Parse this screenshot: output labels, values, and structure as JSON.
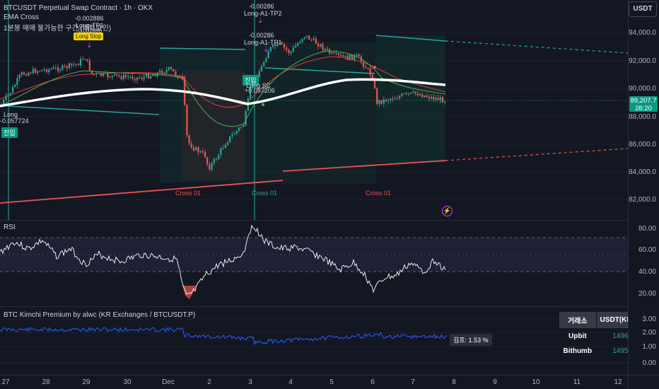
{
  "header": {
    "symbol_title": "BTCUSDT Perpetual Swap Contract · 1h · OKX",
    "indicator1": "EMA Cross",
    "indicator2": "1분봉 매매 불가능한 구간 (비트코인)"
  },
  "currency_button": "USDT",
  "price_axis": [
    "94,000.0",
    "92,000.0",
    "90,000.0",
    "88,000.0",
    "86,000.0",
    "84,000.0",
    "82,000.0"
  ],
  "last_price": {
    "value": "89,207.7",
    "countdown": "28:20"
  },
  "rsi": {
    "title": "RSI",
    "ticks": [
      "80.00",
      "60.00",
      "40.00",
      "20.00"
    ]
  },
  "kimchi": {
    "title": "BTC Kimchi Premium by alwc (KR Exchanges / BTCUSDT.P)",
    "ticks": [
      "3.00",
      "2.00",
      "1.00",
      "0.00"
    ],
    "premium_label": "김프: 1.53 %",
    "table": {
      "headers": [
        "거래소",
        "USDT(KRW)"
      ],
      "rows": [
        {
          "exchange": "Upbit",
          "rate": "1496"
        },
        {
          "exchange": "Bithumb",
          "rate": "1495"
        }
      ]
    }
  },
  "time_axis": [
    "27",
    "28",
    "29",
    "30",
    "Dec",
    "2",
    "3",
    "4",
    "5",
    "6",
    "7",
    "8",
    "9",
    "10",
    "11",
    "12"
  ],
  "signals": {
    "cross_labels": [
      "Cross 01",
      "Cross 01",
      "Cross 01"
    ],
    "long_left": {
      "label": "Long",
      "pnl": "-0.057724",
      "entry": "진입"
    },
    "tp1_left": {
      "pnl1": "-0.002886",
      "label": "Long-TP1",
      "pnl2": "-0.002886",
      "pnl3": "-0.002886",
      "stop": "Long Stop"
    },
    "tp2_mid": {
      "pnl": "-0.00286",
      "label": "Long-A1-TP2"
    },
    "tp1_mid": {
      "pnl": "-0.00286",
      "label": "Long-A1-TP1"
    },
    "long_mid": {
      "entry": "진입",
      "label": "Long SC",
      "pnl": "+0.057206"
    }
  },
  "colors": {
    "background": "#131722",
    "up": "#26a69a",
    "down": "#ef5350",
    "ema_slow": "#ffffff",
    "rsi_line": "#ffffff",
    "kimchi_line": "#2962ff",
    "green_value": "#26a69a"
  }
}
